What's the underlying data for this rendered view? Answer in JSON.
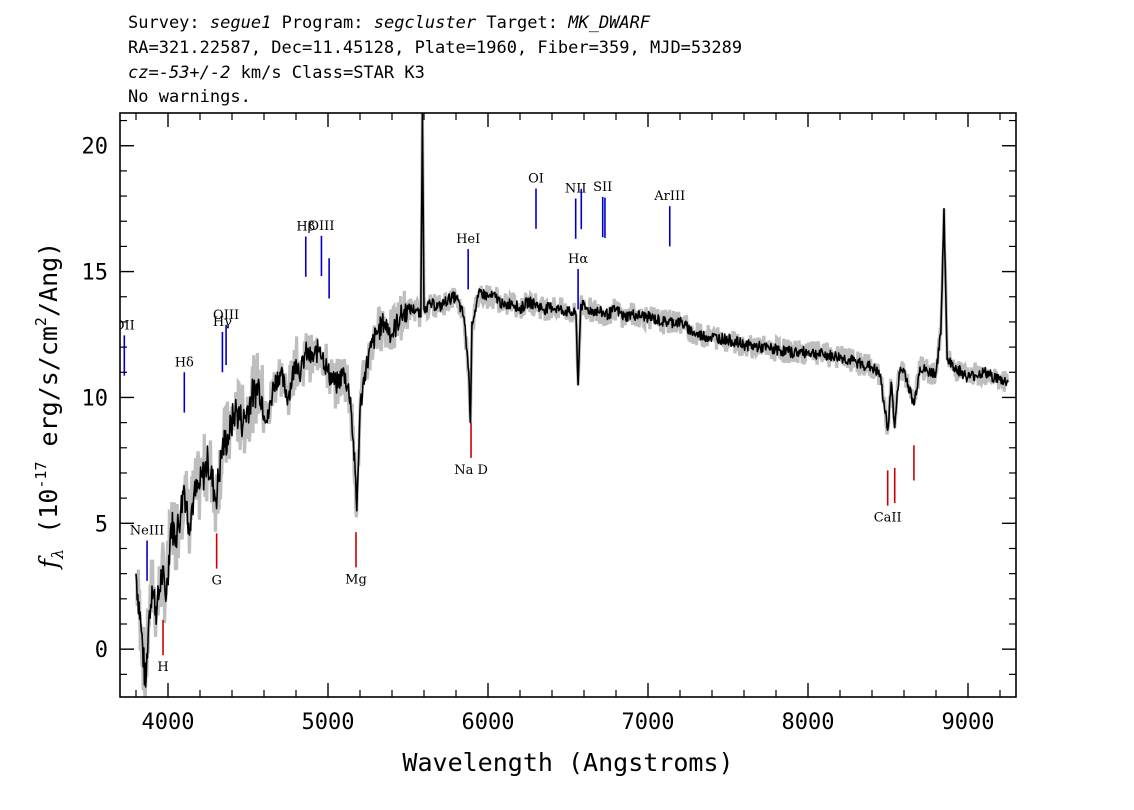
{
  "header": {
    "line1": {
      "survey_label": "Survey:",
      "survey": "segue1",
      "program_label": "Program:",
      "program": "segcluster",
      "target_label": "Target:",
      "target": "MK_DWARF"
    },
    "line2": "RA=321.22587, Dec=11.45128, Plate=1960, Fiber=359, MJD=53289",
    "line3": {
      "cz_label": "cz=",
      "cz_value": "-53+/-2",
      "rest": " km/s Class=STAR K3"
    },
    "line4": "No warnings."
  },
  "colors": {
    "flux": "#000000",
    "error": "#bebebe",
    "emission_marker": "#0000cc",
    "absorption_marker": "#cc0000"
  },
  "chart_data": {
    "type": "line",
    "xlabel": "Wavelength (Angstroms)",
    "ylabel_parts": {
      "f": "f",
      "sub": "λ",
      "open": " (10",
      "exp": "-17",
      "mid": " erg/s/cm",
      "exp2": "2",
      "close": "/Ang)"
    },
    "xlim": [
      3700,
      9300
    ],
    "ylim": [
      -1.9,
      21.3
    ],
    "xticks": [
      4000,
      5000,
      6000,
      7000,
      8000,
      9000
    ],
    "yticks": [
      0,
      5,
      10,
      15,
      20
    ],
    "grid": false,
    "spectrum": {
      "x": [
        3800,
        3830,
        3860,
        3880,
        3900,
        3930,
        3960,
        3990,
        4020,
        4050,
        4080,
        4100,
        4130,
        4160,
        4200,
        4250,
        4300,
        4340,
        4380,
        4420,
        4470,
        4520,
        4570,
        4620,
        4660,
        4700,
        4750,
        4800,
        4830,
        4860,
        4900,
        4950,
        5000,
        5050,
        5100,
        5140,
        5170,
        5180,
        5200,
        5230,
        5270,
        5300,
        5350,
        5400,
        5450,
        5500,
        5550,
        5580,
        5590,
        5600,
        5610,
        5650,
        5700,
        5750,
        5800,
        5850,
        5880,
        5890,
        5900,
        5950,
        6000,
        6050,
        6100,
        6150,
        6200,
        6250,
        6300,
        6350,
        6400,
        6450,
        6500,
        6550,
        6563,
        6580,
        6620,
        6700,
        6750,
        6800,
        6850,
        6900,
        7000,
        7100,
        7200,
        7300,
        7400,
        7500,
        7600,
        7700,
        7800,
        7900,
        8000,
        8100,
        8200,
        8300,
        8400,
        8450,
        8498,
        8520,
        8542,
        8570,
        8600,
        8662,
        8700,
        8750,
        8800,
        8830,
        8850,
        8870,
        8900,
        9000,
        9100,
        9200,
        9250
      ],
      "y": [
        3.0,
        1.0,
        -1.5,
        1.2,
        2.5,
        1.5,
        3.0,
        2.2,
        5.0,
        4.5,
        5.5,
        6.5,
        5.0,
        6.0,
        6.5,
        7.5,
        6.0,
        8.0,
        8.5,
        9.5,
        9.0,
        10.0,
        10.5,
        9.0,
        10.5,
        11.0,
        10.0,
        11.5,
        11.0,
        11.8,
        11.5,
        12.0,
        11.0,
        10.5,
        11.0,
        10.0,
        7.0,
        5.5,
        9.5,
        11.0,
        12.0,
        12.5,
        13.0,
        12.5,
        13.2,
        13.5,
        13.5,
        13.2,
        21.3,
        13.5,
        13.6,
        13.7,
        13.6,
        13.9,
        14.0,
        13.2,
        11.0,
        9.0,
        13.0,
        14.2,
        14.0,
        14.0,
        13.6,
        13.8,
        13.5,
        13.8,
        13.7,
        13.5,
        13.6,
        13.5,
        13.4,
        13.3,
        10.5,
        13.7,
        13.5,
        13.4,
        13.3,
        13.5,
        13.2,
        13.3,
        13.2,
        13.0,
        13.0,
        12.5,
        12.4,
        12.3,
        12.1,
        12.0,
        11.9,
        11.8,
        11.8,
        11.7,
        11.6,
        11.4,
        11.2,
        10.9,
        8.7,
        10.6,
        8.8,
        11.0,
        11.1,
        9.7,
        11.2,
        11.0,
        11.0,
        12.5,
        17.5,
        11.5,
        11.3,
        10.8,
        11.0,
        10.7,
        10.6
      ]
    },
    "line_markers": [
      {
        "label": "OII",
        "wavelength": 3727,
        "type": "emission"
      },
      {
        "label": "NeIII",
        "wavelength": 3869,
        "type": "emission"
      },
      {
        "label": "Hδ",
        "wavelength": 4102,
        "type": "emission"
      },
      {
        "label": "Hγ",
        "wavelength": 4340,
        "type": "emission"
      },
      {
        "label": "OIII",
        "wavelength": 4363,
        "type": "emission"
      },
      {
        "label": "Hβ",
        "wavelength": 4861,
        "type": "emission"
      },
      {
        "label": "OIII",
        "wavelength": 4959,
        "type": "emission"
      },
      {
        "label": "OIII",
        "wavelength": 5007,
        "type": "emission"
      },
      {
        "label": "HeI",
        "wavelength": 5876,
        "type": "emission"
      },
      {
        "label": "OI",
        "wavelength": 6300,
        "type": "emission"
      },
      {
        "label": "NII",
        "wavelength": 6548,
        "type": "emission"
      },
      {
        "label": "Hα",
        "wavelength": 6563,
        "type": "emission"
      },
      {
        "label": "NII",
        "wavelength": 6583,
        "type": "emission"
      },
      {
        "label": "SII",
        "wavelength": 6717,
        "type": "emission"
      },
      {
        "label": "SII",
        "wavelength": 6731,
        "type": "emission"
      },
      {
        "label": "ArIII",
        "wavelength": 7136,
        "type": "emission"
      },
      {
        "label": "H",
        "wavelength": 3969,
        "type": "absorption"
      },
      {
        "label": "G",
        "wavelength": 4304,
        "type": "absorption"
      },
      {
        "label": "Mg",
        "wavelength": 5175,
        "type": "absorption"
      },
      {
        "label": "Na D",
        "wavelength": 5894,
        "type": "absorption"
      },
      {
        "label": "CaII",
        "wavelength": 8498,
        "type": "absorption"
      },
      {
        "label": "CaII",
        "wavelength": 8542,
        "type": "absorption"
      },
      {
        "label": "CaII",
        "wavelength": 8662,
        "type": "absorption"
      }
    ]
  }
}
